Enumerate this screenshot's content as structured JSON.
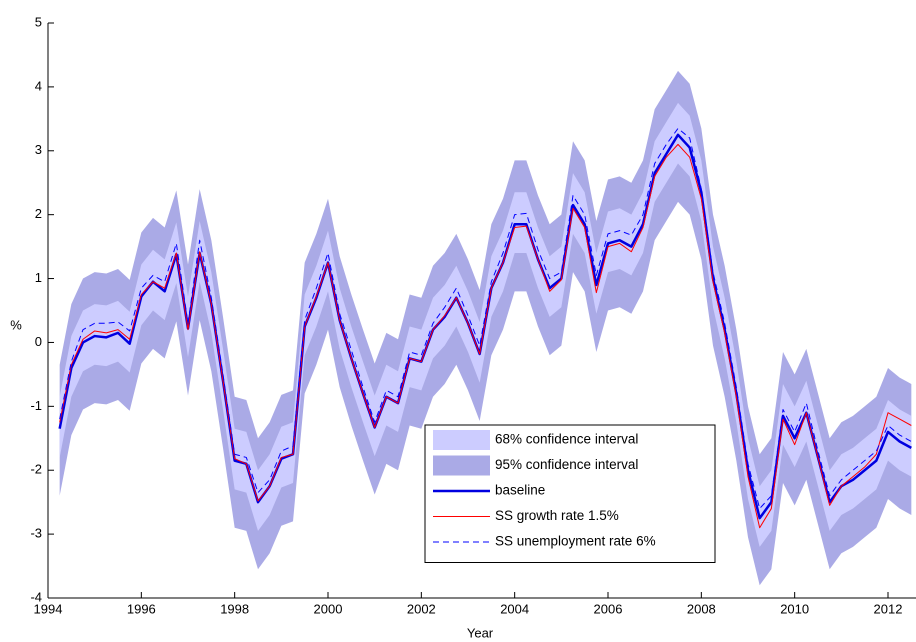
{
  "chart_data": {
    "type": "line",
    "x_label": "Year",
    "y_label": "%",
    "xlim": [
      1994,
      2012.6
    ],
    "xticks": [
      1994,
      1996,
      1998,
      2000,
      2002,
      2004,
      2006,
      2008,
      2010,
      2012
    ],
    "ylim": [
      -4,
      5
    ],
    "yticks": [
      -4,
      -3,
      -2,
      -1,
      0,
      1,
      2,
      3,
      4,
      5
    ],
    "x": [
      1994.25,
      1994.5,
      1994.75,
      1995,
      1995.25,
      1995.5,
      1995.75,
      1996,
      1996.25,
      1996.5,
      1996.75,
      1997,
      1997.25,
      1997.5,
      1997.75,
      1998,
      1998.25,
      1998.5,
      1998.75,
      1999,
      1999.25,
      1999.5,
      1999.75,
      2000,
      2000.25,
      2000.5,
      2000.75,
      2001,
      2001.25,
      2001.5,
      2001.75,
      2002,
      2002.25,
      2002.5,
      2002.75,
      2003,
      2003.25,
      2003.5,
      2003.75,
      2004,
      2004.25,
      2004.5,
      2004.75,
      2005,
      2005.25,
      2005.5,
      2005.75,
      2006,
      2006.25,
      2006.5,
      2006.75,
      2007,
      2007.25,
      2007.5,
      2007.75,
      2008,
      2008.25,
      2008.5,
      2008.75,
      2009,
      2009.25,
      2009.5,
      2009.75,
      2010,
      2010.25,
      2010.5,
      2010.75,
      2011,
      2011.25,
      2011.5,
      2011.75,
      2012,
      2012.25,
      2012.5
    ],
    "series": [
      {
        "name": "68% confidence interval",
        "kind": "band",
        "color": "#ccccff",
        "lower": [
          -1.8,
          -0.85,
          -0.45,
          -0.35,
          -0.37,
          -0.3,
          -0.47,
          0.27,
          0.5,
          0.35,
          0.93,
          -0.23,
          0.95,
          0.15,
          -1.05,
          -2.3,
          -2.35,
          -2.95,
          -2.7,
          -2.27,
          -2.2,
          -0.2,
          0.25,
          0.8,
          -0.1,
          -0.7,
          -1.25,
          -1.78,
          -1.3,
          -1.4,
          -0.7,
          -0.75,
          -0.25,
          -0.05,
          0.25,
          -0.15,
          -0.63,
          0.4,
          0.8,
          1.4,
          1.4,
          0.85,
          0.4,
          0.55,
          1.7,
          1.4,
          0.45,
          1.1,
          1.15,
          1.05,
          1.4,
          2.2,
          2.5,
          2.8,
          2.6,
          1.9,
          0.55,
          -0.25,
          -1.25,
          -2.45,
          -3.2,
          -2.95,
          -1.6,
          -1.95,
          -1.55,
          -2.25,
          -2.95,
          -2.7,
          -2.6,
          -2.45,
          -2.3,
          -1.85,
          -2.0,
          -2.1
        ],
        "upper": [
          -0.85,
          0.1,
          0.5,
          0.6,
          0.58,
          0.65,
          0.48,
          1.22,
          1.45,
          1.3,
          1.88,
          0.72,
          1.9,
          1.1,
          -0.1,
          -1.35,
          -1.4,
          -2.0,
          -1.75,
          -1.32,
          -1.25,
          0.75,
          1.2,
          1.75,
          0.85,
          0.25,
          -0.3,
          -0.83,
          -0.35,
          -0.45,
          0.25,
          0.2,
          0.7,
          0.9,
          1.2,
          0.8,
          0.32,
          1.35,
          1.75,
          2.35,
          2.35,
          1.8,
          1.35,
          1.5,
          2.65,
          2.35,
          1.4,
          2.05,
          2.1,
          2.0,
          2.35,
          3.15,
          3.45,
          3.75,
          3.55,
          2.85,
          1.5,
          0.7,
          -0.3,
          -1.5,
          -2.25,
          -2.0,
          -0.65,
          -1.0,
          -0.6,
          -1.3,
          -2.0,
          -1.75,
          -1.65,
          -1.5,
          -1.35,
          -0.9,
          -1.05,
          -1.15
        ]
      },
      {
        "name": "95% confidence interval",
        "kind": "band",
        "color": "#aaaae6",
        "lower": [
          -2.4,
          -1.45,
          -1.05,
          -0.95,
          -0.97,
          -0.9,
          -1.07,
          -0.33,
          -0.1,
          -0.25,
          0.33,
          -0.83,
          0.35,
          -0.45,
          -1.65,
          -2.9,
          -2.95,
          -3.55,
          -3.3,
          -2.87,
          -2.8,
          -0.8,
          -0.35,
          0.2,
          -0.7,
          -1.3,
          -1.85,
          -2.38,
          -1.9,
          -2.0,
          -1.3,
          -1.35,
          -0.85,
          -0.65,
          -0.35,
          -0.75,
          -1.23,
          -0.2,
          0.2,
          0.8,
          0.8,
          0.25,
          -0.2,
          -0.05,
          1.1,
          0.8,
          -0.15,
          0.5,
          0.55,
          0.45,
          0.8,
          1.6,
          1.9,
          2.2,
          2.0,
          1.3,
          -0.05,
          -0.85,
          -1.85,
          -3.05,
          -3.8,
          -3.55,
          -2.2,
          -2.55,
          -2.15,
          -2.85,
          -3.55,
          -3.3,
          -3.2,
          -3.05,
          -2.9,
          -2.45,
          -2.6,
          -2.7
        ],
        "upper": [
          -0.35,
          0.6,
          1.0,
          1.1,
          1.08,
          1.15,
          0.98,
          1.72,
          1.95,
          1.8,
          2.38,
          1.22,
          2.4,
          1.6,
          0.4,
          -0.85,
          -0.9,
          -1.5,
          -1.25,
          -0.82,
          -0.75,
          1.25,
          1.7,
          2.25,
          1.35,
          0.75,
          0.2,
          -0.33,
          0.15,
          0.05,
          0.75,
          0.7,
          1.2,
          1.4,
          1.7,
          1.3,
          0.82,
          1.85,
          2.25,
          2.85,
          2.85,
          2.3,
          1.85,
          2.0,
          3.15,
          2.85,
          1.9,
          2.55,
          2.6,
          2.5,
          2.85,
          3.65,
          3.95,
          4.25,
          4.05,
          3.35,
          2.0,
          1.2,
          0.2,
          -1.0,
          -1.75,
          -1.5,
          -0.15,
          -0.5,
          -0.1,
          -0.8,
          -1.5,
          -1.25,
          -1.15,
          -1.0,
          -0.85,
          -0.4,
          -0.55,
          -0.65
        ]
      },
      {
        "name": "baseline",
        "kind": "line",
        "color": "#0000e0",
        "width": 2.5,
        "dashed": false,
        "values": [
          -1.35,
          -0.4,
          0.0,
          0.1,
          0.08,
          0.15,
          -0.02,
          0.72,
          0.95,
          0.8,
          1.38,
          0.22,
          1.4,
          0.6,
          -0.6,
          -1.85,
          -1.9,
          -2.5,
          -2.25,
          -1.82,
          -1.75,
          0.25,
          0.7,
          1.25,
          0.35,
          -0.25,
          -0.8,
          -1.33,
          -0.85,
          -0.95,
          -0.25,
          -0.3,
          0.2,
          0.4,
          0.7,
          0.3,
          -0.18,
          0.85,
          1.25,
          1.85,
          1.85,
          1.3,
          0.85,
          1.0,
          2.15,
          1.85,
          0.9,
          1.55,
          1.6,
          1.5,
          1.85,
          2.65,
          2.95,
          3.25,
          3.05,
          2.35,
          1.0,
          0.2,
          -0.8,
          -2.0,
          -2.75,
          -2.5,
          -1.15,
          -1.5,
          -1.1,
          -1.8,
          -2.5,
          -2.25,
          -2.15,
          -2.0,
          -1.85,
          -1.4,
          -1.55,
          -1.65
        ]
      },
      {
        "name": "SS growth rate 1.5%",
        "kind": "line",
        "color": "#ff0000",
        "width": 1,
        "dashed": false,
        "values": [
          -1.25,
          -0.35,
          0.05,
          0.18,
          0.15,
          0.2,
          0.05,
          0.75,
          0.95,
          0.85,
          1.4,
          0.2,
          1.42,
          0.6,
          -0.6,
          -1.82,
          -1.9,
          -2.48,
          -2.25,
          -1.8,
          -1.75,
          0.25,
          0.72,
          1.25,
          0.35,
          -0.25,
          -0.8,
          -1.33,
          -0.85,
          -0.95,
          -0.25,
          -0.3,
          0.2,
          0.42,
          0.7,
          0.3,
          -0.18,
          0.85,
          1.25,
          1.8,
          1.82,
          1.3,
          0.8,
          0.98,
          2.1,
          1.8,
          0.78,
          1.5,
          1.55,
          1.42,
          1.8,
          2.6,
          2.9,
          3.1,
          2.9,
          2.25,
          0.95,
          0.15,
          -0.85,
          -2.1,
          -2.9,
          -2.6,
          -1.2,
          -1.6,
          -1.1,
          -1.8,
          -2.55,
          -2.25,
          -2.1,
          -1.95,
          -1.75,
          -1.1,
          -1.2,
          -1.3
        ]
      },
      {
        "name": "SS unemployment rate 6%",
        "kind": "line",
        "color": "#0000ff",
        "width": 1,
        "dashed": true,
        "values": [
          -1.2,
          -0.3,
          0.2,
          0.3,
          0.3,
          0.32,
          0.18,
          0.85,
          1.05,
          0.95,
          1.55,
          0.3,
          1.6,
          0.7,
          -0.5,
          -1.75,
          -1.8,
          -2.35,
          -2.15,
          -1.7,
          -1.62,
          0.35,
          0.85,
          1.4,
          0.45,
          -0.12,
          -0.7,
          -1.25,
          -0.75,
          -0.85,
          -0.15,
          -0.2,
          0.3,
          0.55,
          0.85,
          0.42,
          -0.05,
          0.95,
          1.4,
          2.0,
          2.02,
          1.45,
          1.0,
          1.1,
          2.3,
          2.0,
          1.05,
          1.7,
          1.75,
          1.68,
          2.0,
          2.8,
          3.1,
          3.35,
          3.2,
          2.4,
          1.1,
          0.3,
          -0.7,
          -1.9,
          -2.6,
          -2.4,
          -1.05,
          -1.4,
          -0.95,
          -1.7,
          -2.4,
          -2.15,
          -2.0,
          -1.85,
          -1.7,
          -1.3,
          -1.45,
          -1.55
        ]
      }
    ]
  }
}
